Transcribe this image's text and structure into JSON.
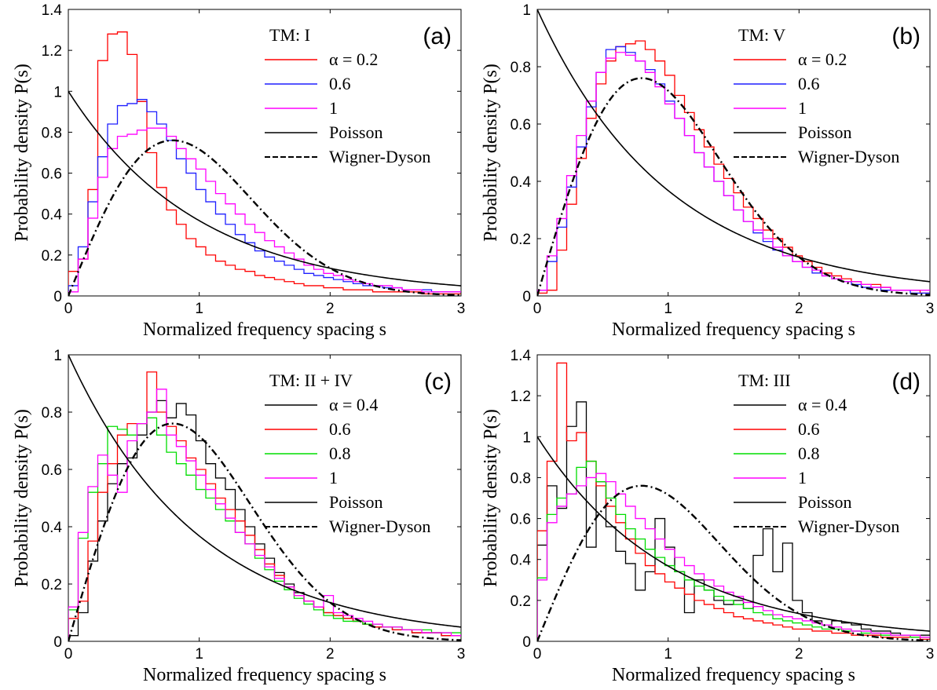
{
  "colors": {
    "red": "#ff0000",
    "blue": "#1f1fff",
    "magenta": "#ff00ff",
    "green": "#00dd00",
    "black": "#000000"
  },
  "chart_data": [
    {
      "type": "line",
      "panel_label": "(a)",
      "legend_title": "TM: I",
      "xlabel": "Normalized frequency spacing s",
      "ylabel": "Probability density P(s)",
      "xlim": [
        0,
        3
      ],
      "ylim": [
        0,
        1.4
      ],
      "xticks": [
        "0",
        "1",
        "2",
        "3"
      ],
      "yticks": [
        "0",
        "0.2",
        "0.4",
        "0.6",
        "0.8",
        "1",
        "1.2",
        "1.4"
      ],
      "grid": false,
      "legend_position": "top-right",
      "bin_width": 0.075,
      "series": [
        {
          "name": "α = 0.2",
          "style": "step",
          "color": "red",
          "values": [
            0.12,
            0.18,
            0.52,
            1.15,
            1.28,
            1.29,
            1.18,
            0.95,
            0.7,
            0.53,
            0.42,
            0.35,
            0.28,
            0.24,
            0.2,
            0.17,
            0.15,
            0.13,
            0.12,
            0.1,
            0.09,
            0.08,
            0.07,
            0.06,
            0.05,
            0.05,
            0.04,
            0.04,
            0.03,
            0.03,
            0.03,
            0.02,
            0.02,
            0.02,
            0.02,
            0.02,
            0.01,
            0.01,
            0.01,
            0.01
          ]
        },
        {
          "name": "0.6",
          "style": "step",
          "color": "blue",
          "values": [
            0.05,
            0.24,
            0.46,
            0.68,
            0.84,
            0.93,
            0.94,
            0.96,
            0.9,
            0.84,
            0.76,
            0.67,
            0.6,
            0.52,
            0.46,
            0.4,
            0.35,
            0.3,
            0.26,
            0.22,
            0.19,
            0.17,
            0.15,
            0.13,
            0.11,
            0.1,
            0.09,
            0.08,
            0.07,
            0.06,
            0.05,
            0.05,
            0.04,
            0.04,
            0.03,
            0.03,
            0.03,
            0.02,
            0.02,
            0.02
          ]
        },
        {
          "name": "1",
          "style": "step",
          "color": "magenta",
          "values": [
            0.02,
            0.18,
            0.38,
            0.58,
            0.72,
            0.78,
            0.79,
            0.81,
            0.82,
            0.82,
            0.78,
            0.72,
            0.67,
            0.62,
            0.56,
            0.5,
            0.45,
            0.4,
            0.35,
            0.31,
            0.27,
            0.24,
            0.21,
            0.18,
            0.15,
            0.13,
            0.11,
            0.1,
            0.08,
            0.07,
            0.06,
            0.05,
            0.05,
            0.04,
            0.03,
            0.03,
            0.02,
            0.02,
            0.02,
            0.02
          ]
        },
        {
          "name": "Poisson",
          "style": "solid",
          "color": "black",
          "function": "poisson"
        },
        {
          "name": "Wigner-Dyson",
          "style": "dashed",
          "color": "black",
          "function": "wigner"
        }
      ]
    },
    {
      "type": "line",
      "panel_label": "(b)",
      "legend_title": "TM: V",
      "xlabel": "Normalized frequency spacing s",
      "ylabel": "Probability density P(s)",
      "xlim": [
        0,
        3
      ],
      "ylim": [
        0,
        1
      ],
      "xticks": [
        "0",
        "1",
        "2",
        "3"
      ],
      "yticks": [
        "0",
        "0.2",
        "0.4",
        "0.6",
        "0.8",
        "1"
      ],
      "grid": false,
      "legend_position": "top-right",
      "bin_width": 0.075,
      "series": [
        {
          "name": "α = 0.2",
          "style": "step",
          "color": "red",
          "values": [
            0.01,
            0.02,
            0.16,
            0.32,
            0.48,
            0.62,
            0.74,
            0.82,
            0.87,
            0.88,
            0.89,
            0.86,
            0.82,
            0.77,
            0.7,
            0.64,
            0.58,
            0.52,
            0.46,
            0.41,
            0.36,
            0.31,
            0.27,
            0.23,
            0.2,
            0.17,
            0.14,
            0.12,
            0.1,
            0.08,
            0.07,
            0.06,
            0.05,
            0.04,
            0.04,
            0.03,
            0.02,
            0.02,
            0.02,
            0.01
          ]
        },
        {
          "name": "0.6",
          "style": "step",
          "color": "blue",
          "values": [
            0.02,
            0.12,
            0.24,
            0.38,
            0.52,
            0.66,
            0.78,
            0.86,
            0.87,
            0.85,
            0.82,
            0.79,
            0.74,
            0.68,
            0.62,
            0.56,
            0.5,
            0.45,
            0.4,
            0.35,
            0.3,
            0.26,
            0.22,
            0.19,
            0.16,
            0.14,
            0.12,
            0.1,
            0.08,
            0.07,
            0.06,
            0.05,
            0.04,
            0.03,
            0.03,
            0.02,
            0.02,
            0.02,
            0.01,
            0.01
          ]
        },
        {
          "name": "1",
          "style": "step",
          "color": "magenta",
          "values": [
            0.02,
            0.14,
            0.27,
            0.42,
            0.56,
            0.68,
            0.78,
            0.83,
            0.85,
            0.84,
            0.82,
            0.78,
            0.73,
            0.67,
            0.62,
            0.56,
            0.5,
            0.45,
            0.4,
            0.35,
            0.3,
            0.26,
            0.23,
            0.2,
            0.17,
            0.14,
            0.12,
            0.1,
            0.09,
            0.07,
            0.06,
            0.05,
            0.05,
            0.04,
            0.03,
            0.03,
            0.02,
            0.02,
            0.02,
            0.02
          ]
        },
        {
          "name": "Poisson",
          "style": "solid",
          "color": "black",
          "function": "poisson"
        },
        {
          "name": "Wigner-Dyson",
          "style": "dashed",
          "color": "black",
          "function": "wigner"
        }
      ]
    },
    {
      "type": "line",
      "panel_label": "(c)",
      "legend_title": "TM: II + IV",
      "xlabel": "Normalized frequency spacing s",
      "ylabel": "Probability density P(s)",
      "xlim": [
        0,
        3
      ],
      "ylim": [
        0,
        1
      ],
      "xticks": [
        "0",
        "1",
        "2",
        "3"
      ],
      "yticks": [
        "0",
        "0.2",
        "0.4",
        "0.6",
        "0.8",
        "1"
      ],
      "grid": false,
      "legend_position": "top-right",
      "bin_width": 0.075,
      "series": [
        {
          "name": "α = 0.4",
          "style": "step",
          "color": "black",
          "values": [
            0.02,
            0.1,
            0.28,
            0.42,
            0.55,
            0.62,
            0.64,
            0.72,
            0.8,
            0.84,
            0.78,
            0.83,
            0.79,
            0.7,
            0.62,
            0.57,
            0.53,
            0.46,
            0.4,
            0.34,
            0.29,
            0.24,
            0.2,
            0.17,
            0.14,
            0.12,
            0.1,
            0.09,
            0.08,
            0.07,
            0.06,
            0.05,
            0.05,
            0.04,
            0.04,
            0.03,
            0.03,
            0.03,
            0.02,
            0.02
          ]
        },
        {
          "name": "0.6",
          "style": "step",
          "color": "red",
          "values": [
            0.08,
            0.14,
            0.35,
            0.52,
            0.62,
            0.72,
            0.76,
            0.76,
            0.94,
            0.8,
            0.75,
            0.7,
            0.64,
            0.6,
            0.55,
            0.5,
            0.46,
            0.42,
            0.37,
            0.32,
            0.27,
            0.23,
            0.19,
            0.16,
            0.14,
            0.12,
            0.1,
            0.09,
            0.08,
            0.07,
            0.06,
            0.05,
            0.05,
            0.04,
            0.04,
            0.03,
            0.03,
            0.03,
            0.02,
            0.02
          ]
        },
        {
          "name": "0.8",
          "style": "step",
          "color": "green",
          "values": [
            0.11,
            0.36,
            0.52,
            0.62,
            0.75,
            0.74,
            0.72,
            0.76,
            0.78,
            0.72,
            0.66,
            0.62,
            0.58,
            0.53,
            0.5,
            0.46,
            0.42,
            0.38,
            0.34,
            0.29,
            0.25,
            0.21,
            0.18,
            0.15,
            0.13,
            0.11,
            0.09,
            0.08,
            0.07,
            0.07,
            0.06,
            0.06,
            0.05,
            0.05,
            0.04,
            0.04,
            0.04,
            0.03,
            0.03,
            0.03
          ]
        },
        {
          "name": "1",
          "style": "step",
          "color": "magenta",
          "values": [
            0.12,
            0.38,
            0.54,
            0.65,
            0.58,
            0.52,
            0.7,
            0.76,
            0.8,
            0.88,
            0.72,
            0.68,
            0.63,
            0.58,
            0.53,
            0.48,
            0.43,
            0.38,
            0.34,
            0.3,
            0.26,
            0.22,
            0.19,
            0.16,
            0.14,
            0.12,
            0.16,
            0.1,
            0.09,
            0.08,
            0.07,
            0.06,
            0.05,
            0.05,
            0.04,
            0.04,
            0.03,
            0.03,
            0.03,
            0.02
          ]
        },
        {
          "name": "Poisson",
          "style": "solid",
          "color": "black",
          "function": "poisson"
        },
        {
          "name": "Wigner-Dyson",
          "style": "dashed",
          "color": "black",
          "function": "wigner"
        }
      ]
    },
    {
      "type": "line",
      "panel_label": "(d)",
      "legend_title": "TM: III",
      "xlabel": "Normalized frequency spacing s",
      "ylabel": "Probability density P(s)",
      "xlim": [
        0,
        3
      ],
      "ylim": [
        0,
        1.4
      ],
      "xticks": [
        "0",
        "1",
        "2",
        "3"
      ],
      "yticks": [
        "0",
        "0.2",
        "0.4",
        "0.6",
        "0.8",
        "1",
        "1.2",
        "1.4"
      ],
      "grid": false,
      "legend_position": "top-right",
      "bin_width": 0.075,
      "series": [
        {
          "name": "α = 0.4",
          "style": "step",
          "color": "black",
          "values": [
            0.47,
            0.76,
            0.65,
            1.05,
            1.17,
            0.46,
            0.78,
            0.56,
            0.44,
            0.38,
            0.25,
            0.34,
            0.6,
            0.46,
            0.34,
            0.14,
            0.3,
            0.25,
            0.2,
            0.18,
            0.2,
            0.16,
            0.42,
            0.55,
            0.34,
            0.48,
            0.2,
            0.14,
            0.1,
            0.08,
            0.1,
            0.09,
            0.08,
            0.06,
            0.05,
            0.05,
            0.04,
            0.03,
            0.03,
            0.03
          ]
        },
        {
          "name": "0.6",
          "style": "step",
          "color": "red",
          "values": [
            0.54,
            0.88,
            1.36,
            0.98,
            1.02,
            0.88,
            0.76,
            0.66,
            0.58,
            0.5,
            0.43,
            0.37,
            0.33,
            0.29,
            0.26,
            0.23,
            0.2,
            0.18,
            0.16,
            0.14,
            0.12,
            0.11,
            0.1,
            0.09,
            0.08,
            0.07,
            0.06,
            0.06,
            0.05,
            0.05,
            0.04,
            0.04,
            0.03,
            0.03,
            0.03,
            0.02,
            0.02,
            0.02,
            0.02,
            0.01
          ]
        },
        {
          "name": "0.8",
          "style": "step",
          "color": "green",
          "values": [
            0.31,
            0.62,
            0.7,
            0.72,
            0.85,
            0.88,
            0.78,
            0.7,
            0.62,
            0.55,
            0.5,
            0.45,
            0.41,
            0.37,
            0.34,
            0.3,
            0.27,
            0.25,
            0.22,
            0.2,
            0.18,
            0.16,
            0.14,
            0.13,
            0.11,
            0.1,
            0.09,
            0.08,
            0.07,
            0.06,
            0.06,
            0.05,
            0.05,
            0.04,
            0.04,
            0.03,
            0.03,
            0.03,
            0.02,
            0.02
          ]
        },
        {
          "name": "1",
          "style": "step",
          "color": "magenta",
          "values": [
            0.3,
            0.58,
            0.66,
            0.72,
            0.76,
            0.8,
            0.82,
            0.78,
            0.72,
            0.66,
            0.6,
            0.55,
            0.5,
            0.45,
            0.41,
            0.37,
            0.33,
            0.3,
            0.27,
            0.24,
            0.22,
            0.19,
            0.17,
            0.15,
            0.13,
            0.12,
            0.11,
            0.1,
            0.09,
            0.08,
            0.07,
            0.06,
            0.05,
            0.05,
            0.04,
            0.04,
            0.03,
            0.03,
            0.03,
            0.02
          ]
        },
        {
          "name": "Poisson",
          "style": "solid",
          "color": "black",
          "function": "poisson"
        },
        {
          "name": "Wigner-Dyson",
          "style": "dashed",
          "color": "black",
          "function": "wigner"
        }
      ]
    }
  ]
}
